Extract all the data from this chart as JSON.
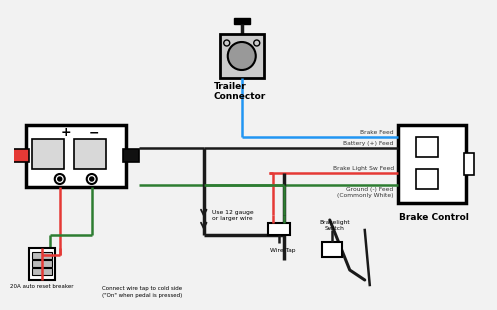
{
  "bg_color": "#f2f2f2",
  "wire_colors": {
    "blue": "#2196F3",
    "black": "#1a1a1a",
    "red": "#e53935",
    "green": "#2e7d32"
  },
  "labels": {
    "brake_feed": "Brake Feed",
    "battery_feed": "Battery (+) Feed",
    "brake_light_feed": "Brake Light Sw Feed",
    "ground_feed": "Ground (-) Feed\n(Commonly White)",
    "trailer_connector": "Trailer\nConnector",
    "brake_control": "Brake Control",
    "wire_tap": "Wire Tap",
    "breaker": "20A auto reset breaker",
    "brakelight_switch": "Brakelight\nSwitch",
    "gauge_note": "Use 12 gauge\nor larger wire",
    "wire_tap_note": "Connect wire tap to cold side\n(\"On\" when pedal is pressed)"
  }
}
